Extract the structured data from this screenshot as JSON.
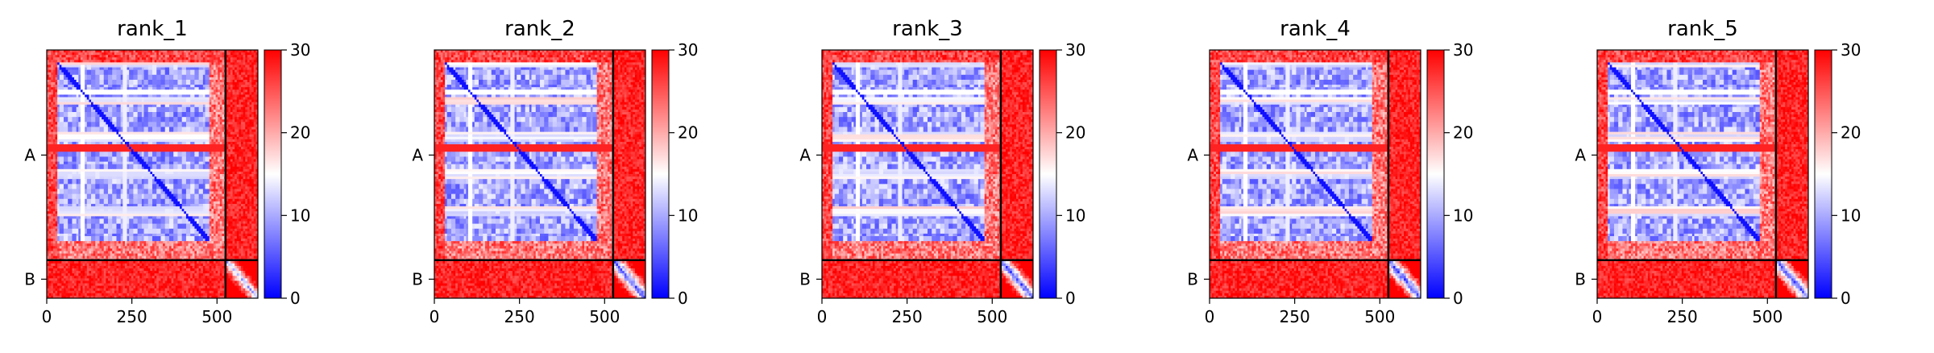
{
  "chart_data": [
    {
      "type": "heatmap",
      "title": "rank_1",
      "x_ticks": [
        0,
        250,
        500
      ],
      "xlim": [
        0,
        620
      ],
      "chain_labels": [
        "A",
        "B"
      ],
      "chain_boundary": 525,
      "colorbar": {
        "ticks": [
          0,
          10,
          20,
          30
        ],
        "range": [
          0,
          30
        ],
        "colormap": "bwr"
      },
      "pattern": {
        "bright_row_band": [
          235,
          252
        ],
        "bright_col_band": [
          235,
          252
        ],
        "extra_b_block": 5
      }
    },
    {
      "type": "heatmap",
      "title": "rank_2",
      "x_ticks": [
        0,
        250,
        500
      ],
      "xlim": [
        0,
        620
      ],
      "chain_labels": [
        "A",
        "B"
      ],
      "chain_boundary": 525,
      "colorbar": {
        "ticks": [
          0,
          10,
          20,
          30
        ],
        "range": [
          0,
          30
        ],
        "colormap": "bwr"
      },
      "pattern": {
        "bright_row_band": [
          235,
          252
        ],
        "bright_col_band": [
          235,
          252
        ],
        "extra_b_block": 0
      }
    },
    {
      "type": "heatmap",
      "title": "rank_3",
      "x_ticks": [
        0,
        250,
        500
      ],
      "xlim": [
        0,
        620
      ],
      "chain_labels": [
        "A",
        "B"
      ],
      "chain_boundary": 525,
      "colorbar": {
        "ticks": [
          0,
          10,
          20,
          30
        ],
        "range": [
          0,
          30
        ],
        "colormap": "bwr"
      },
      "pattern": {
        "bright_row_band": [
          235,
          252
        ],
        "bright_col_band": [
          235,
          252
        ],
        "extra_b_block": 0
      }
    },
    {
      "type": "heatmap",
      "title": "rank_4",
      "x_ticks": [
        0,
        250,
        500
      ],
      "xlim": [
        0,
        620
      ],
      "chain_labels": [
        "A",
        "B"
      ],
      "chain_boundary": 525,
      "colorbar": {
        "ticks": [
          0,
          10,
          20,
          30
        ],
        "range": [
          0,
          30
        ],
        "colormap": "bwr"
      },
      "pattern": {
        "bright_row_band": [
          235,
          252
        ],
        "bright_col_band": [
          235,
          252
        ],
        "extra_b_block": 0
      }
    },
    {
      "type": "heatmap",
      "title": "rank_5",
      "x_ticks": [
        0,
        250,
        500
      ],
      "xlim": [
        0,
        620
      ],
      "chain_labels": [
        "A",
        "B"
      ],
      "chain_boundary": 525,
      "colorbar": {
        "ticks": [
          0,
          10,
          20,
          30
        ],
        "range": [
          0,
          30
        ],
        "colormap": "bwr"
      },
      "pattern": {
        "bright_row_band": [
          235,
          252
        ],
        "bright_col_band": [
          235,
          252
        ],
        "extra_b_block": 0
      }
    }
  ]
}
